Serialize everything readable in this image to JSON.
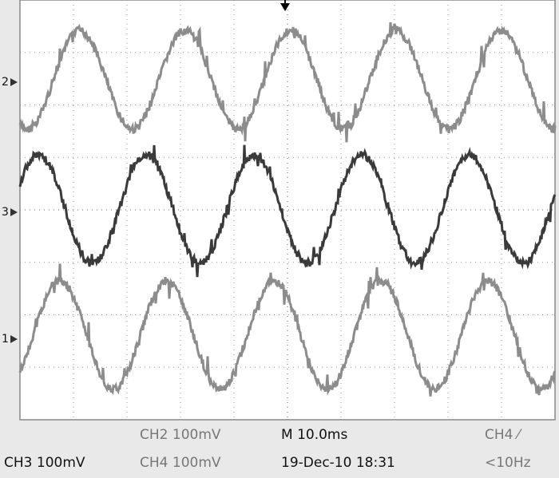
{
  "markers": [
    "2",
    "3",
    "1"
  ],
  "status": {
    "row1": [
      "CH2  100mV",
      "M 10.0ms",
      "CH4 ⁄"
    ],
    "row2": [
      "CH3  100mV",
      "CH4  100mV",
      "19-Dec-10 18:31",
      "<10Hz"
    ]
  }
}
